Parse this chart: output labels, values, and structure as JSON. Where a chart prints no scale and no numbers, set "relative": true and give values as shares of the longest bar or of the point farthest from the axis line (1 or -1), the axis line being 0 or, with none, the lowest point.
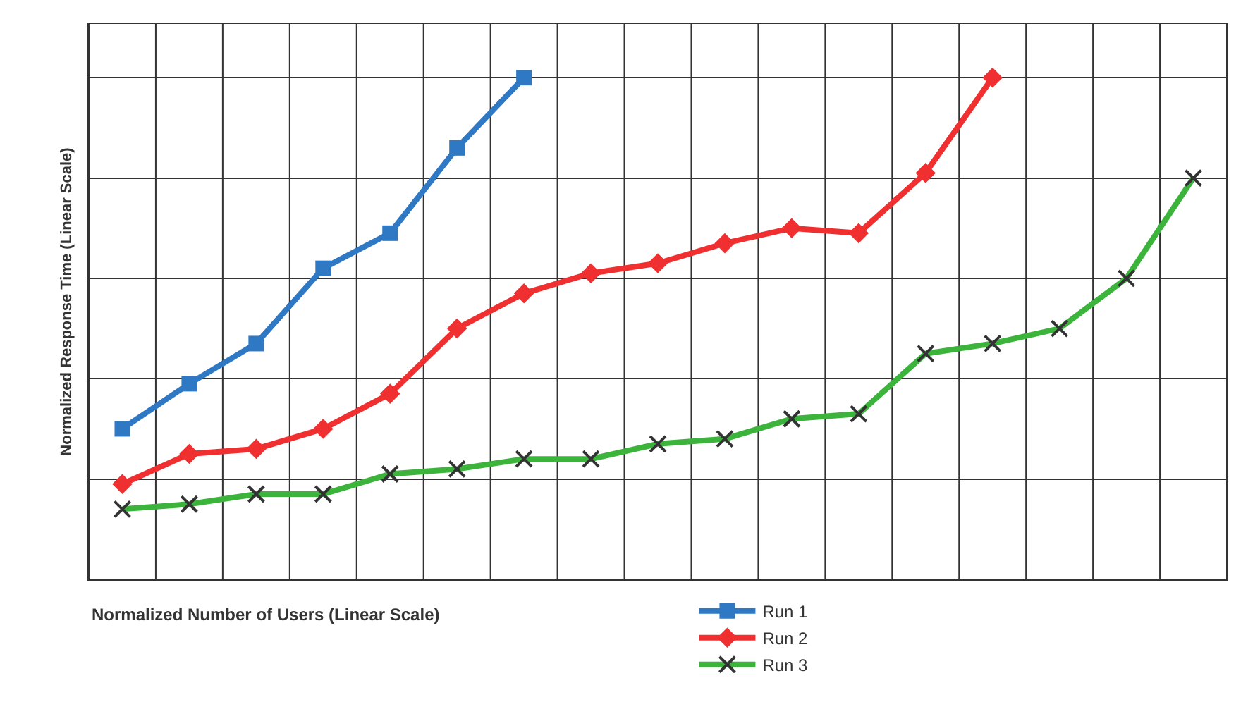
{
  "chart_data": {
    "type": "line",
    "relative": true,
    "xlabel": "Normalized Number of Users (Linear Scale)",
    "ylabel": "Normalized Response Time (Linear Scale)",
    "categories": [
      null,
      null,
      null,
      null,
      null,
      null,
      null,
      null,
      null,
      null,
      null,
      null,
      null,
      null,
      null,
      null,
      null
    ],
    "grid": true,
    "legend": "bottom right",
    "series": [
      {
        "name": "Run 1",
        "color": "#2f78c4",
        "marker": "square",
        "values": [
          0.3,
          0.39,
          0.47,
          0.62,
          0.69,
          0.86,
          1.0,
          null,
          null,
          null,
          null,
          null,
          null,
          null,
          null,
          null,
          null
        ]
      },
      {
        "name": "Run 2",
        "color": "#f03030",
        "marker": "diamond",
        "values": [
          0.19,
          0.25,
          0.26,
          0.3,
          0.37,
          0.5,
          0.57,
          0.61,
          0.63,
          0.67,
          0.7,
          0.69,
          0.81,
          1.0,
          null,
          null,
          null
        ]
      },
      {
        "name": "Run 3",
        "color": "#3cb43c",
        "marker": "cross",
        "values": [
          0.14,
          0.15,
          0.17,
          0.17,
          0.21,
          0.22,
          0.24,
          0.24,
          0.27,
          0.28,
          0.32,
          0.33,
          0.45,
          0.47,
          0.5,
          0.6,
          0.8
        ]
      }
    ]
  }
}
